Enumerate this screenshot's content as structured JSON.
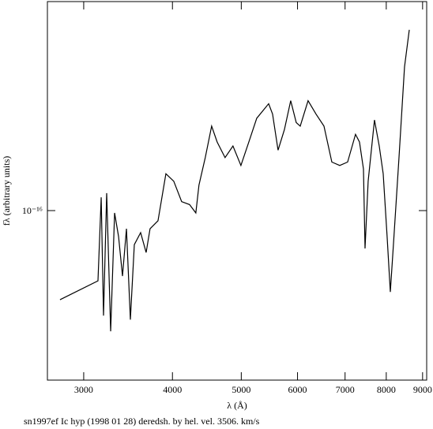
{
  "chart_data": {
    "type": "line",
    "caption": "sn1997ef Ic hyp (1998 01 28) deredsh. by hel. vel.  3506. km/s",
    "x_label": "λ (Å)",
    "y_label": "fλ (arbitrary units)",
    "xscale": "log",
    "yscale": "log",
    "color": "#000000",
    "x": [
      2778,
      3142,
      3175,
      3199,
      3232,
      3274,
      3316,
      3359,
      3402,
      3446,
      3490,
      3535,
      3608,
      3673,
      3720,
      3817,
      3916,
      4017,
      4121,
      4228,
      4315,
      4359,
      4449,
      4542,
      4624,
      4744,
      4867,
      4994,
      5124,
      5257,
      5464,
      5534,
      5633,
      5750,
      5869,
      5975,
      6053,
      6209,
      6371,
      6537,
      6706,
      6880,
      7058,
      7241,
      7335,
      7430,
      7468,
      7544,
      7700,
      7820,
      7921,
      8022,
      8106,
      8188,
      8337,
      8488,
      8620
    ],
    "values": [
      5.61e-17,
      6.34e-17,
      1.09e-16,
      5.06e-17,
      1.12e-16,
      4.57e-17,
      9.85e-17,
      8.45e-17,
      6.54e-17,
      8.89e-17,
      4.93e-17,
      8.02e-17,
      8.67e-17,
      7.62e-17,
      8.89e-17,
      9.36e-17,
      1.27e-16,
      1.21e-16,
      1.06e-16,
      1.04e-16,
      9.85e-17,
      1.18e-16,
      1.41e-16,
      1.73e-16,
      1.56e-16,
      1.41e-16,
      1.52e-16,
      1.34e-16,
      1.56e-16,
      1.82e-16,
      2e-16,
      1.87e-16,
      1.48e-16,
      1.69e-16,
      2.04e-16,
      1.77e-16,
      1.73e-16,
      2.04e-16,
      1.87e-16,
      1.73e-16,
      1.37e-16,
      1.34e-16,
      1.37e-16,
      1.64e-16,
      1.56e-16,
      1.31e-16,
      7.82e-17,
      1.21e-16,
      1.8e-16,
      1.52e-16,
      1.27e-16,
      8.45e-17,
      5.9e-17,
      8.02e-17,
      1.41e-16,
      2.54e-16,
      3.23e-16
    ],
    "xlim": [
      2667,
      9120
    ],
    "xticks": [
      3000,
      4000,
      5000,
      6000,
      7000,
      8000,
      9000
    ],
    "ylim": [
      3.33e-17,
      3.88e-16
    ],
    "yticks": [
      {
        "value": 1e-16,
        "label": "10⁻¹⁶"
      }
    ]
  }
}
